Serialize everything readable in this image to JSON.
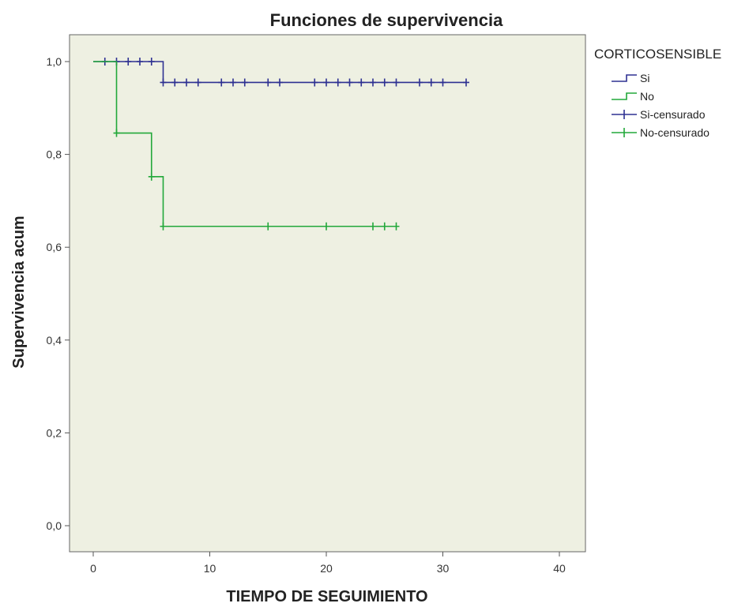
{
  "chart_data": {
    "type": "line",
    "title": "Funciones de supervivencia",
    "xlabel": "TIEMPO DE SEGUIMIENTO",
    "ylabel": "Supervivencia acum",
    "xlim": [
      0,
      40
    ],
    "ylim": [
      0,
      1
    ],
    "xticks": [
      0,
      10,
      20,
      30,
      40
    ],
    "xtick_labels": [
      "0",
      "10",
      "20",
      "30",
      "40"
    ],
    "yticks": [
      0,
      0.2,
      0.4,
      0.6,
      0.8,
      1.0
    ],
    "ytick_labels": [
      "0,0",
      "0,2",
      "0,4",
      "0,6",
      "0,8",
      "1,0"
    ],
    "grid": false,
    "background": "#eef0e2",
    "legend": {
      "title": "CORTICOSENSIBLE",
      "placement": "right",
      "entries": [
        {
          "label": "Si",
          "kind": "step",
          "color": "#2e3192"
        },
        {
          "label": "No",
          "kind": "step",
          "color": "#22a83a"
        },
        {
          "label": "Si-censurado",
          "kind": "censor",
          "color": "#2e3192"
        },
        {
          "label": "No-censurado",
          "kind": "censor",
          "color": "#22a83a"
        }
      ]
    },
    "series": [
      {
        "name": "Si",
        "color": "#2e3192",
        "steps": [
          [
            0,
            1.0
          ],
          [
            6,
            0.955
          ],
          [
            32,
            0.955
          ]
        ],
        "censored": [
          [
            1,
            1.0
          ],
          [
            2,
            1.0
          ],
          [
            3,
            1.0
          ],
          [
            4,
            1.0
          ],
          [
            5,
            1.0
          ],
          [
            6,
            0.955
          ],
          [
            7,
            0.955
          ],
          [
            8,
            0.955
          ],
          [
            9,
            0.955
          ],
          [
            11,
            0.955
          ],
          [
            12,
            0.955
          ],
          [
            13,
            0.955
          ],
          [
            15,
            0.955
          ],
          [
            16,
            0.955
          ],
          [
            19,
            0.955
          ],
          [
            20,
            0.955
          ],
          [
            21,
            0.955
          ],
          [
            22,
            0.955
          ],
          [
            23,
            0.955
          ],
          [
            24,
            0.955
          ],
          [
            25,
            0.955
          ],
          [
            26,
            0.955
          ],
          [
            28,
            0.955
          ],
          [
            29,
            0.955
          ],
          [
            30,
            0.955
          ],
          [
            32,
            0.955
          ]
        ]
      },
      {
        "name": "No",
        "color": "#22a83a",
        "steps": [
          [
            0,
            1.0
          ],
          [
            2,
            0.846
          ],
          [
            5,
            0.752
          ],
          [
            6,
            0.645
          ],
          [
            26,
            0.645
          ]
        ],
        "censored": [
          [
            2,
            0.846
          ],
          [
            5,
            0.752
          ],
          [
            6,
            0.645
          ],
          [
            15,
            0.645
          ],
          [
            20,
            0.645
          ],
          [
            24,
            0.645
          ],
          [
            25,
            0.645
          ],
          [
            26,
            0.645
          ]
        ]
      }
    ]
  }
}
